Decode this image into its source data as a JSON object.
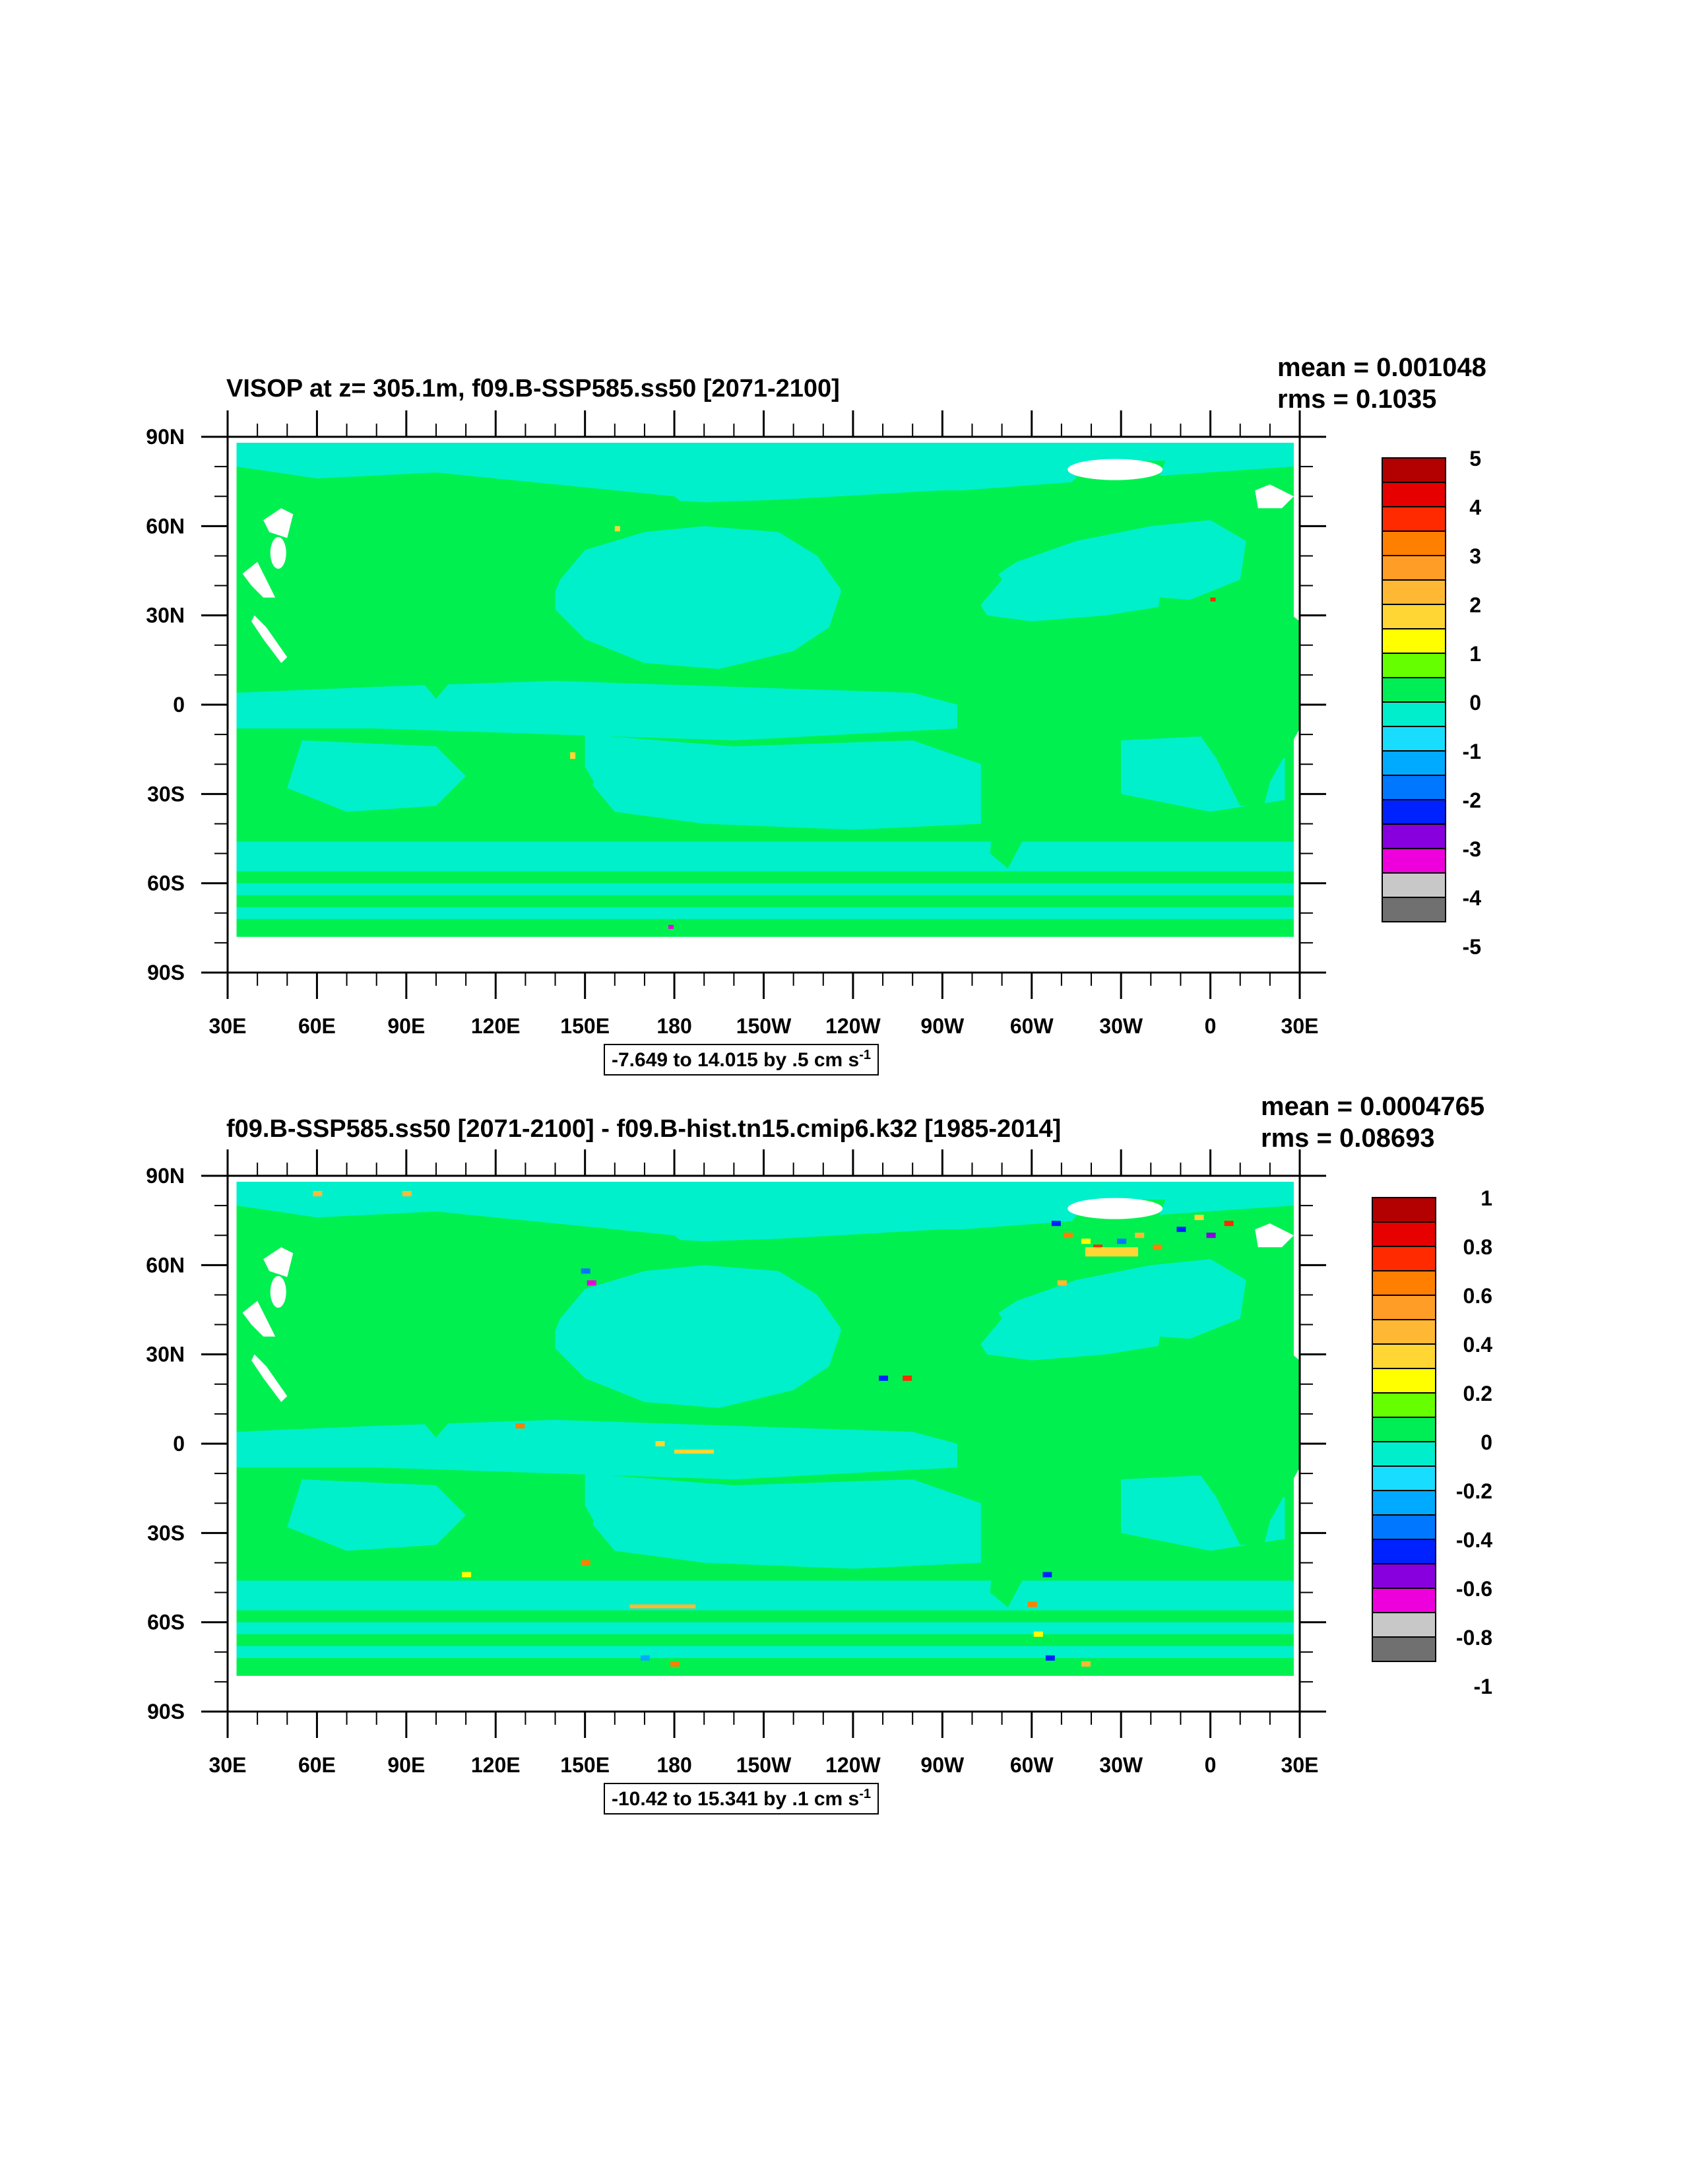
{
  "panels": [
    {
      "title": "VISOP at z= 305.1m, f09.B-SSP585.ss50 [2071-2100]",
      "mean": "mean = 0.001048",
      "rms": "rms = 0.1035",
      "info": {
        "text": "-7.649 to 14.015 by .5 cm s",
        "sup": "-1"
      },
      "colorbar_labels": [
        "5",
        "4",
        "3",
        "2",
        "1",
        "0",
        "-1",
        "-2",
        "-3",
        "-4",
        "-5"
      ]
    },
    {
      "title": "f09.B-SSP585.ss50 [2071-2100] - f09.B-hist.tn15.cmip6.k32 [1985-2014]",
      "mean": "mean = 0.0004765",
      "rms": "rms = 0.08693",
      "info": {
        "text": "-10.42 to 15.341 by .1 cm s",
        "sup": "-1"
      },
      "colorbar_labels": [
        "1",
        "0.8",
        "0.6",
        "0.4",
        "0.2",
        "0",
        "-0.2",
        "-0.4",
        "-0.6",
        "-0.8",
        "-1"
      ]
    }
  ],
  "lat_labels": [
    "90N",
    "60N",
    "30N",
    "0",
    "30S",
    "60S",
    "90S"
  ],
  "lon_labels": [
    "30E",
    "60E",
    "90E",
    "120E",
    "150E",
    "180",
    "150W",
    "120W",
    "90W",
    "60W",
    "30W",
    "0",
    "30E"
  ],
  "colorbar_colors": [
    "#b30000",
    "#e60000",
    "#ff2a00",
    "#ff7f00",
    "#ff9d26",
    "#ffb833",
    "#ffd633",
    "#ffff00",
    "#66ff00",
    "#00ee55",
    "#00eecc",
    "#19ddff",
    "#00aaff",
    "#0077ff",
    "#0022ff",
    "#8800dd",
    "#ee00dd",
    "#c8c8c8",
    "#707070"
  ],
  "colors": {
    "ocean_green": "#00f050",
    "ocean_cyan": "#00f0cc",
    "land": "#ffffff"
  }
}
